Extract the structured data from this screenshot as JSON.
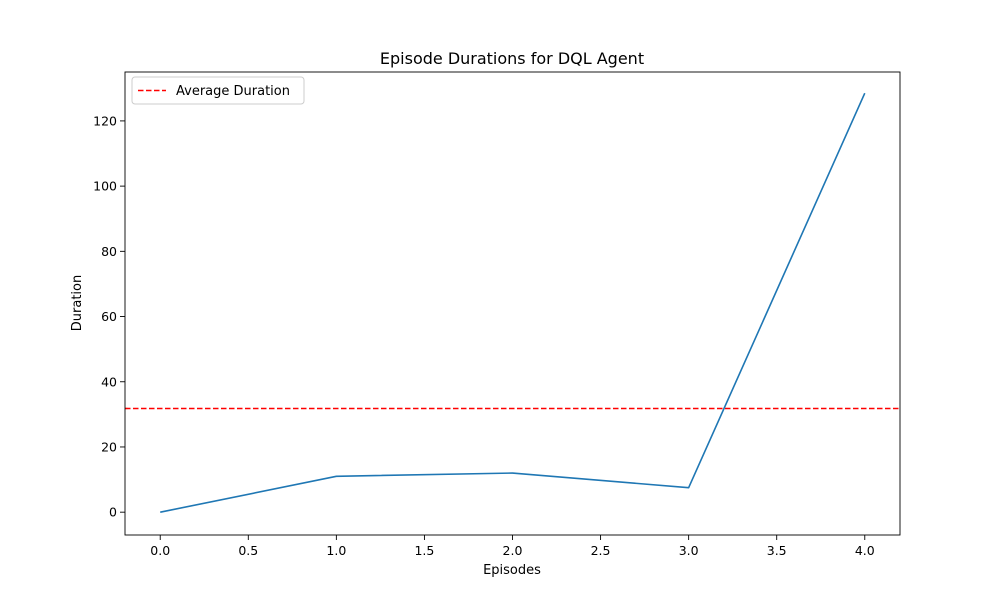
{
  "chart_data": {
    "type": "line",
    "title": "Episode Durations for DQL Agent",
    "xlabel": "Episodes",
    "ylabel": "Duration",
    "xlim": [
      -0.2,
      4.2
    ],
    "ylim": [
      -7,
      135
    ],
    "xticks": [
      0.0,
      0.5,
      1.0,
      1.5,
      2.0,
      2.5,
      3.0,
      3.5,
      4.0
    ],
    "xtick_labels": [
      "0.0",
      "0.5",
      "1.0",
      "1.5",
      "2.0",
      "2.5",
      "3.0",
      "3.5",
      "4.0"
    ],
    "yticks": [
      0,
      20,
      40,
      60,
      80,
      100,
      120
    ],
    "ytick_labels": [
      "0",
      "20",
      "40",
      "60",
      "80",
      "100",
      "120"
    ],
    "grid": false,
    "legend_position": "top-left",
    "series": [
      {
        "x": [
          0,
          1,
          2,
          3,
          4
        ],
        "values": [
          0,
          11,
          12,
          7.5,
          128.5
        ],
        "color": "#1f77b4",
        "style": "solid"
      }
    ],
    "reference_lines": [
      {
        "name": "Average Duration",
        "y": 31.8,
        "color": "#ff0000",
        "style": "dashed"
      }
    ]
  }
}
